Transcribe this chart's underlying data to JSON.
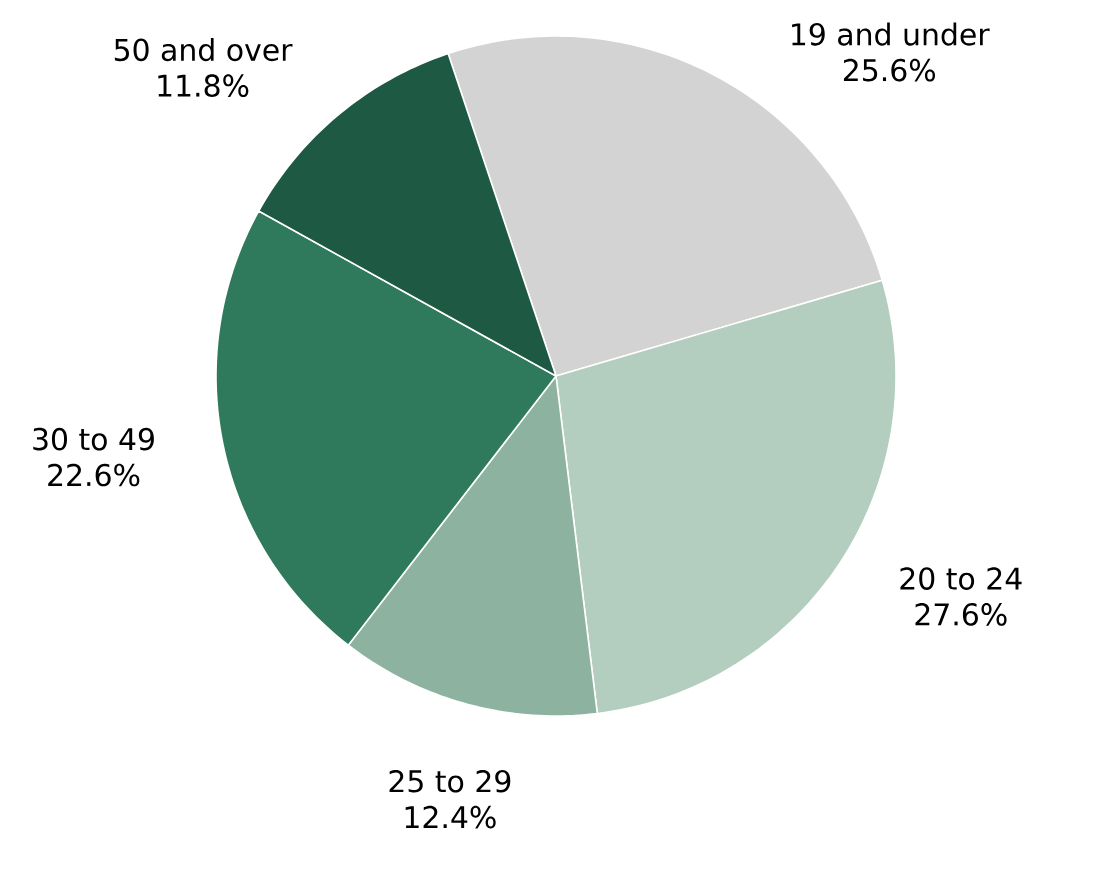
{
  "chart_data": {
    "type": "pie",
    "categories": [
      "19 and under",
      "20 to 24",
      "25 to 29",
      "30 to 49",
      "50 and over"
    ],
    "values": [
      25.6,
      27.6,
      12.4,
      22.6,
      11.8
    ],
    "value_labels": [
      "25.6%",
      "27.6%",
      "12.4%",
      "22.6%",
      "11.8%"
    ],
    "colors": [
      "#d2d3d2",
      "#b3cdbf",
      "#8db3a0",
      "#2f7a5c",
      "#1d5943"
    ]
  }
}
